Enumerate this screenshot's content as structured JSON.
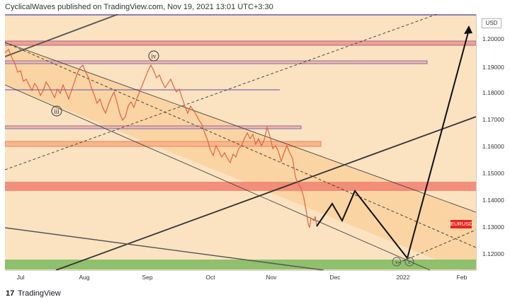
{
  "header": {
    "text": "CyclicalWaves published on TradingView.com, Nov 19, 2021 13:01 UTC+3:30"
  },
  "symbol": {
    "ticker": "EURUSD",
    "currency": "USD"
  },
  "colors": {
    "background": "#fbe2c1",
    "channel_fill": "#f9cf98",
    "resistance_band": "#f4a08a",
    "support_band": "#8fc06d",
    "price_tag": "#e5261f",
    "candles": "#e05a3a",
    "projection": "#111111",
    "purple_line": "#7b6fb5"
  },
  "price_axis": {
    "ticks": [
      "1.20000",
      "1.19000",
      "1.18000",
      "1.17000",
      "1.16000",
      "1.15000",
      "1.14000",
      "1.13000",
      "1.12000"
    ]
  },
  "time_axis": {
    "labels": [
      "Jul",
      "Aug",
      "Sep",
      "Oct",
      "Nov",
      "Dec",
      "2022",
      "Feb"
    ]
  },
  "wave_labels": {
    "iii": "iii",
    "iv": "iv",
    "v": "v",
    "c": "c"
  },
  "footer": {
    "logo_mark": "17",
    "logo_text": "TradingView"
  }
}
